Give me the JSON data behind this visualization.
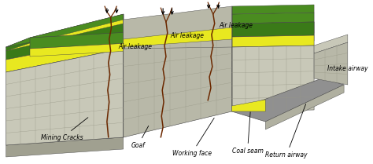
{
  "fig_width": 4.74,
  "fig_height": 2.09,
  "dpi": 100,
  "labels": {
    "air_leakage": "Air leakage",
    "mining_cracks": "Mining Cracks",
    "goaf": "Goaf",
    "working_face": "Working face",
    "coal_seam": "Coal seam",
    "return_airway": "Return airway",
    "intake_airway": "Intake airway"
  },
  "colors": {
    "green_top": "#4a8c20",
    "green_side": "#3a7a18",
    "yellow": "#e8e820",
    "yellow_dark": "#d0d010",
    "stone_light": "#c8c8b8",
    "stone_mid": "#b8b8a8",
    "stone_dark": "#a0a090",
    "crack_brown": "#6b2800",
    "airway_gray": "#909090",
    "airway_light": "#b0b0a0",
    "white": "#ffffff",
    "black": "#000000",
    "edge": "#444444"
  },
  "font_size": 5.5
}
